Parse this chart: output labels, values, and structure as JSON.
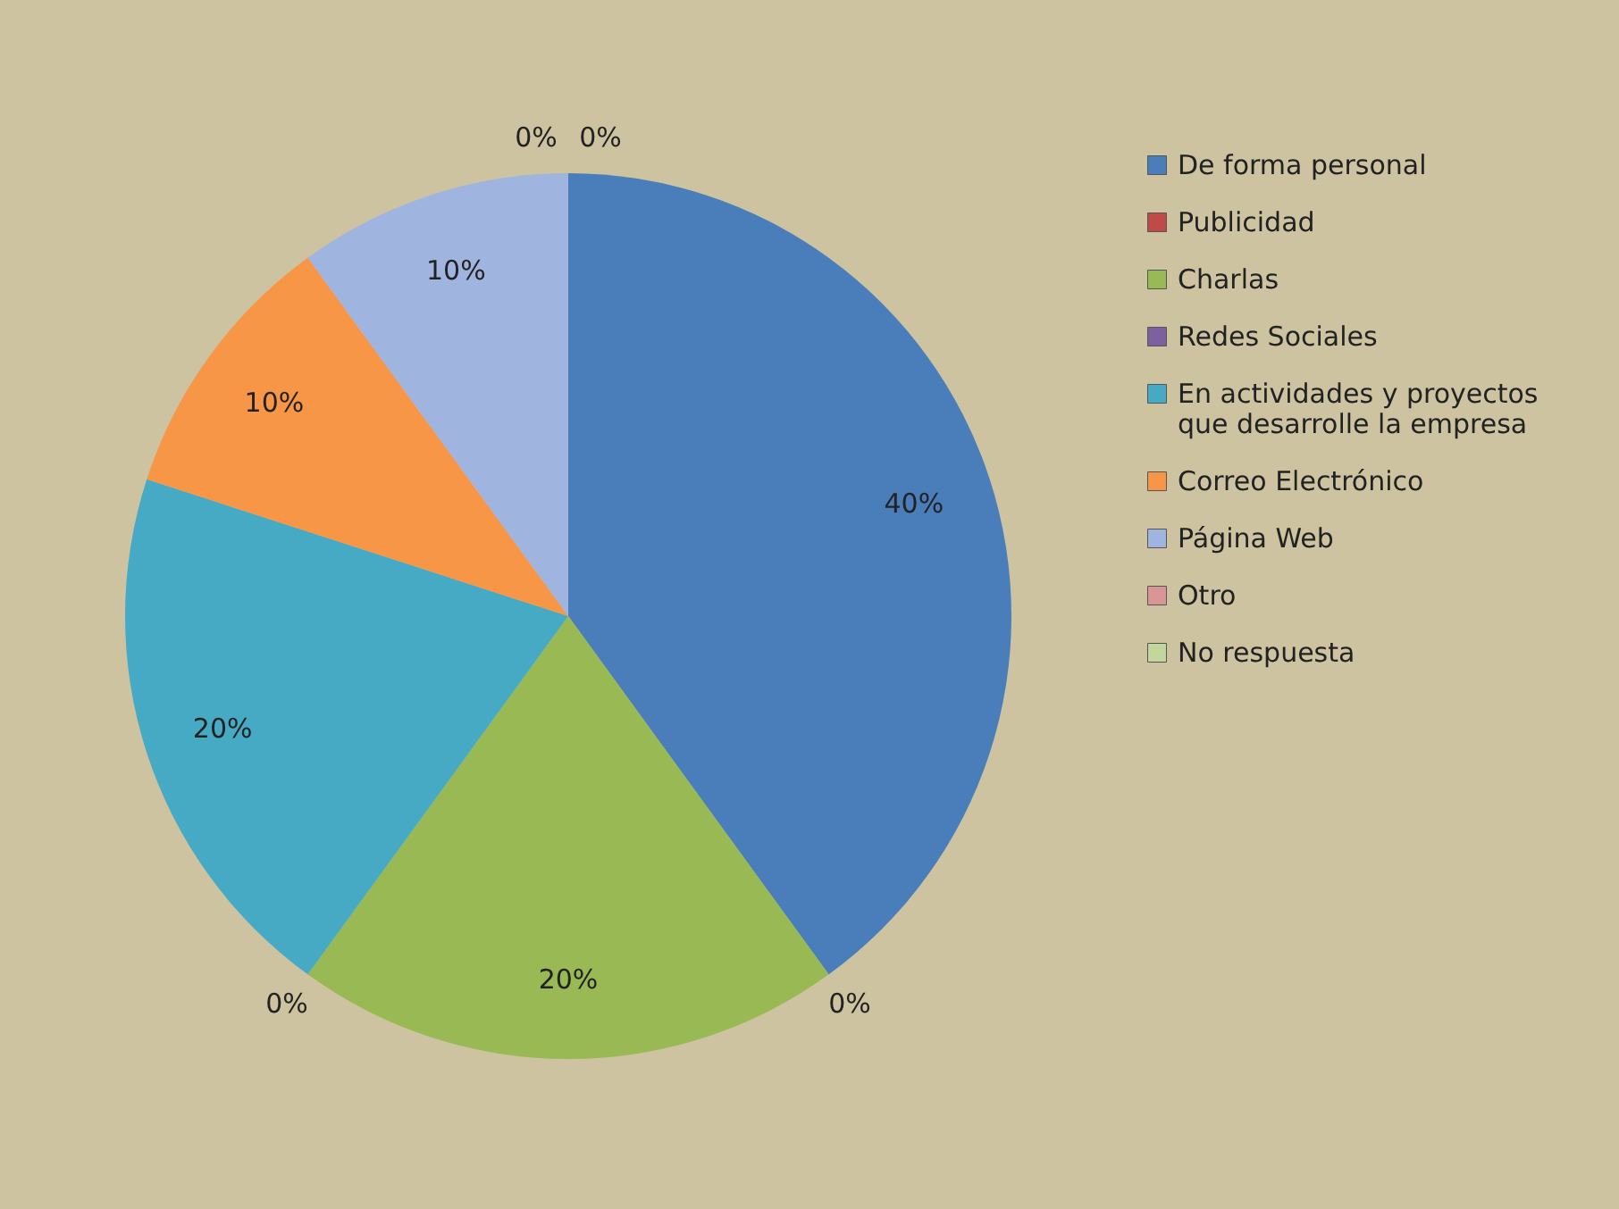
{
  "chart_data": {
    "type": "pie",
    "categories": [
      "De forma personal",
      "Publicidad",
      "Charlas",
      "Redes Sociales",
      "En actividades y proyectos que desarrolle la empresa",
      "Correo Electrónico",
      "Página Web",
      "Otro",
      "No respuesta"
    ],
    "values": [
      40,
      0,
      20,
      0,
      20,
      10,
      10,
      0,
      0
    ],
    "value_labels": [
      "40%",
      "0%",
      "20%",
      "0%",
      "20%",
      "10%",
      "10%",
      "0%",
      "0%"
    ],
    "colors": [
      "#4a7ebb",
      "#be4b48",
      "#98b954",
      "#7d60a0",
      "#46aac4",
      "#f79646",
      "#9fb4de",
      "#d99694",
      "#c3d69b"
    ],
    "legend": "right"
  }
}
